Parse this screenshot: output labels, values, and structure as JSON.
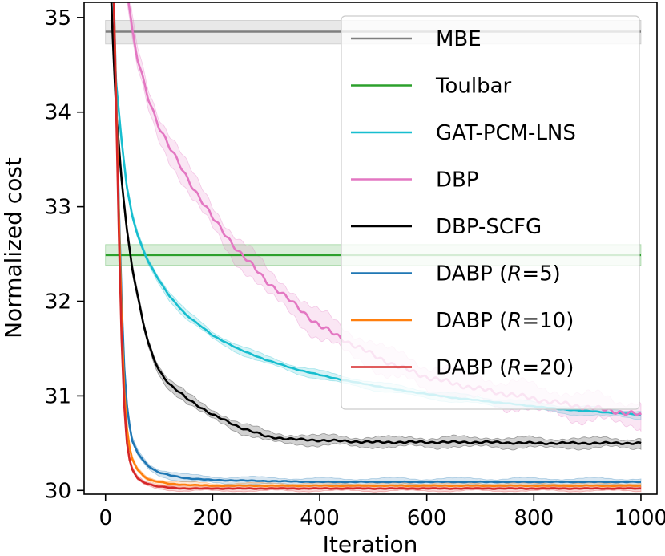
{
  "chart_data": {
    "type": "line",
    "title": "",
    "xlabel": "Iteration",
    "ylabel": "Normalized cost",
    "xlim": [
      -40,
      1030
    ],
    "ylim": [
      29.96,
      35.16
    ],
    "xticks": [
      0,
      200,
      400,
      600,
      800,
      1000
    ],
    "yticks": [
      30,
      31,
      32,
      33,
      34,
      35
    ],
    "legend_position": "top-right",
    "series": [
      {
        "name": "MBE",
        "legend_prefix": "MBE",
        "legend_italic": "",
        "legend_suffix": "",
        "color": "#7f7f7f",
        "x": [
          0,
          1000
        ],
        "y": [
          34.85,
          34.85
        ],
        "band": [
          [
            0,
            34.72,
            34.97
          ],
          [
            1000,
            34.72,
            34.97
          ]
        ]
      },
      {
        "name": "Toulbar",
        "legend_prefix": "Toulbar",
        "legend_italic": "",
        "legend_suffix": "",
        "color": "#2ca02c",
        "x": [
          0,
          1000
        ],
        "y": [
          32.49,
          32.49
        ],
        "band": [
          [
            0,
            32.38,
            32.6
          ],
          [
            1000,
            32.38,
            32.6
          ]
        ]
      },
      {
        "name": "GAT-PCM-LNS",
        "legend_prefix": "GAT-PCM-LNS",
        "legend_italic": "",
        "legend_suffix": "",
        "color": "#17becf",
        "x": [
          10,
          20,
          30,
          40,
          50,
          60,
          70,
          80,
          100,
          120,
          150,
          200,
          250,
          300,
          350,
          400,
          450,
          500,
          550,
          600,
          650,
          700,
          750,
          800,
          850,
          900,
          950,
          1000
        ],
        "y": [
          35.3,
          34.3,
          33.7,
          33.2,
          32.9,
          32.7,
          32.55,
          32.42,
          32.22,
          32.05,
          31.86,
          31.64,
          31.49,
          31.38,
          31.29,
          31.22,
          31.16,
          31.11,
          31.06,
          31.02,
          30.98,
          30.95,
          30.92,
          30.89,
          30.86,
          30.84,
          30.82,
          30.8
        ],
        "band_halfwidth": 0.04
      },
      {
        "name": "DBP",
        "legend_prefix": "DBP",
        "legend_italic": "",
        "legend_suffix": "",
        "color": "#e377c2",
        "x": [
          40,
          50,
          60,
          80,
          100,
          120,
          150,
          200,
          250,
          300,
          350,
          400,
          450,
          500,
          550,
          600,
          650,
          700,
          750,
          800,
          850,
          900,
          950,
          1000
        ],
        "y": [
          35.3,
          34.85,
          34.55,
          34.15,
          33.85,
          33.62,
          33.33,
          32.88,
          32.52,
          32.22,
          31.98,
          31.74,
          31.58,
          31.43,
          31.3,
          31.2,
          31.13,
          31.07,
          31.02,
          30.97,
          30.92,
          30.88,
          30.84,
          30.8
        ],
        "band_halfwidth": 0.13
      },
      {
        "name": "DBP-SCFG",
        "legend_prefix": "DBP-SCFG",
        "legend_italic": "",
        "legend_suffix": "",
        "color": "#000000",
        "x": [
          10,
          15,
          20,
          30,
          40,
          50,
          60,
          70,
          80,
          90,
          100,
          120,
          150,
          200,
          250,
          300,
          350,
          400,
          450,
          500,
          600,
          700,
          800,
          900,
          1000
        ],
        "y": [
          35.3,
          34.6,
          34.0,
          33.3,
          32.75,
          32.35,
          32.05,
          31.78,
          31.55,
          31.4,
          31.27,
          31.12,
          30.98,
          30.8,
          30.67,
          30.57,
          30.54,
          30.53,
          30.52,
          30.51,
          30.51,
          30.51,
          30.5,
          30.5,
          30.5
        ],
        "band_halfwidth": 0.05
      },
      {
        "name": "DABP (R=5)",
        "legend_prefix": "DABP (",
        "legend_italic": "R",
        "legend_suffix": "=5)",
        "color": "#1f77b4",
        "x": [
          15,
          20,
          25,
          30,
          35,
          40,
          45,
          50,
          60,
          70,
          80,
          90,
          100,
          120,
          150,
          200,
          300,
          400,
          500,
          600,
          800,
          1000
        ],
        "y": [
          35.3,
          34.2,
          33.0,
          32.0,
          31.3,
          30.9,
          30.68,
          30.52,
          30.4,
          30.32,
          30.26,
          30.22,
          30.19,
          30.16,
          30.13,
          30.11,
          30.1,
          30.09,
          30.09,
          30.09,
          30.09,
          30.09
        ],
        "band_halfwidth": 0.035
      },
      {
        "name": "DABP (R=10)",
        "legend_prefix": "DABP (",
        "legend_italic": "R",
        "legend_suffix": "=10)",
        "color": "#ff7f0e",
        "x": [
          15,
          20,
          25,
          30,
          35,
          40,
          45,
          50,
          60,
          70,
          80,
          90,
          100,
          120,
          150,
          200,
          300,
          400,
          500,
          600,
          800,
          1000
        ],
        "y": [
          35.3,
          34.1,
          32.9,
          31.8,
          31.05,
          30.65,
          30.45,
          30.33,
          30.22,
          30.16,
          30.12,
          30.1,
          30.09,
          30.07,
          30.06,
          30.05,
          30.05,
          30.05,
          30.05,
          30.05,
          30.05,
          30.05
        ],
        "band_halfwidth": 0.025
      },
      {
        "name": "DABP (R=20)",
        "legend_prefix": "DABP (",
        "legend_italic": "R",
        "legend_suffix": "=20)",
        "color": "#d62728",
        "x": [
          15,
          20,
          25,
          30,
          35,
          40,
          45,
          50,
          60,
          70,
          80,
          90,
          100,
          120,
          150,
          200,
          300,
          400,
          500,
          600,
          800,
          1000
        ],
        "y": [
          35.3,
          34.0,
          32.7,
          31.6,
          30.9,
          30.5,
          30.32,
          30.22,
          30.13,
          30.09,
          30.07,
          30.05,
          30.04,
          30.03,
          30.02,
          30.02,
          30.02,
          30.02,
          30.02,
          30.02,
          30.02,
          30.02
        ],
        "band_halfwidth": 0.025
      }
    ]
  }
}
